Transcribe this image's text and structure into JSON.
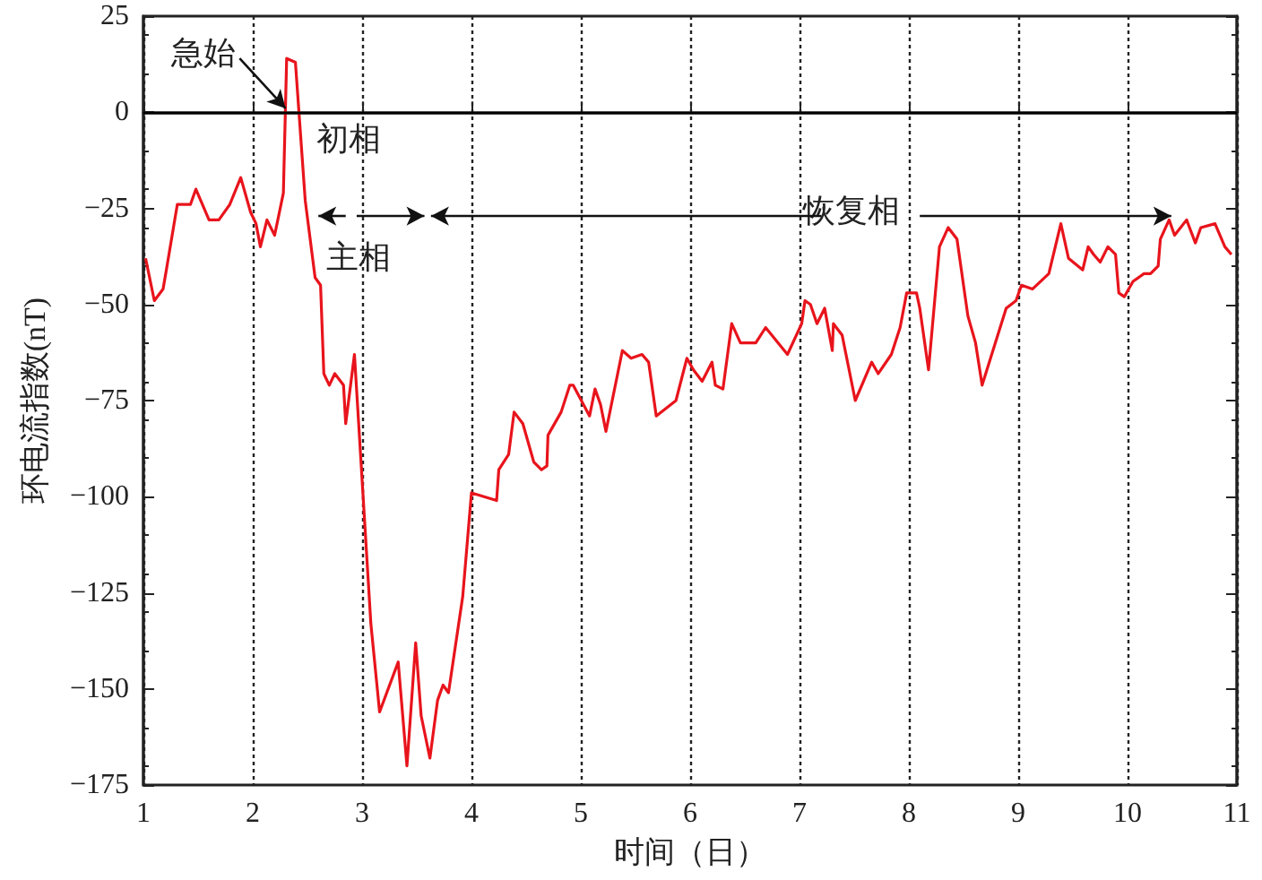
{
  "chart_data": {
    "type": "line",
    "xlabel": "时间（日）",
    "ylabel": "环电流指数(nT)",
    "marker": "none",
    "grid": "x",
    "xlim": [
      1,
      11
    ],
    "xticks": [
      1,
      2,
      3,
      4,
      5,
      6,
      7,
      8,
      9,
      10,
      11
    ],
    "ylim": [
      -175,
      25
    ],
    "yticks": [
      -175,
      -150,
      -125,
      -100,
      -75,
      -50,
      -25,
      0,
      25
    ],
    "x": [
      1.02,
      1.1,
      1.18,
      1.21,
      1.31,
      1.43,
      1.48,
      1.6,
      1.69,
      1.79,
      1.89,
      1.98,
      2.03,
      2.07,
      2.13,
      2.2,
      2.28,
      2.31,
      2.39,
      2.48,
      2.57,
      2.62,
      2.65,
      2.7,
      2.75,
      2.83,
      2.85,
      2.93,
      3.08,
      3.16,
      3.33,
      3.41,
      3.49,
      3.54,
      3.62,
      3.69,
      3.74,
      3.79,
      3.92,
      4.0,
      4.23,
      4.25,
      4.34,
      4.39,
      4.47,
      4.57,
      4.64,
      4.69,
      4.7,
      4.82,
      4.9,
      4.93,
      5.08,
      5.13,
      5.18,
      5.23,
      5.38,
      5.46,
      5.56,
      5.62,
      5.69,
      5.87,
      5.97,
      6.03,
      6.11,
      6.2,
      6.23,
      6.3,
      6.38,
      6.46,
      6.6,
      6.69,
      6.89,
      7.02,
      7.05,
      7.1,
      7.16,
      7.23,
      7.3,
      7.31,
      7.39,
      7.51,
      7.66,
      7.72,
      7.84,
      7.92,
      7.98,
      8.07,
      8.1,
      8.18,
      8.28,
      8.36,
      8.44,
      8.54,
      8.61,
      8.67,
      8.89,
      8.98,
      9.03,
      9.13,
      9.28,
      9.39,
      9.46,
      9.59,
      9.64,
      9.69,
      9.75,
      9.82,
      9.89,
      9.92,
      9.97,
      10.05,
      10.15,
      10.21,
      10.28,
      10.3,
      10.38,
      10.43,
      10.54,
      10.62,
      10.67,
      10.8,
      10.89,
      10.95
    ],
    "series": [
      {
        "color": "#e8141c",
        "values": [
          -38,
          -49,
          -46,
          -41,
          -24,
          -24,
          -20,
          -28,
          -28,
          -24,
          -17,
          -26,
          -29,
          -35,
          -28,
          -32,
          -21,
          14,
          13,
          -23,
          -43,
          -45,
          -68,
          -71,
          -68,
          -71,
          -81,
          -63,
          -133,
          -156,
          -143,
          -170,
          -138,
          -157,
          -168,
          -153,
          -149,
          -151,
          -126,
          -99,
          -101,
          -93,
          -89,
          -78,
          -81,
          -91,
          -93,
          -92,
          -84,
          -78,
          -71,
          -71,
          -79,
          -72,
          -76,
          -83,
          -62,
          -64,
          -63,
          -65,
          -79,
          -75,
          -64,
          -67,
          -70,
          -65,
          -71,
          -72,
          -55,
          -60,
          -60,
          -56,
          -63,
          -55,
          -49,
          -50,
          -55,
          -51,
          -62,
          -55,
          -58,
          -75,
          -65,
          -68,
          -63,
          -56,
          -47,
          -47,
          -51,
          -67,
          -35,
          -30,
          -33,
          -53,
          -60,
          -71,
          -51,
          -49,
          -45,
          -46,
          -42,
          -29,
          -38,
          -41,
          -35,
          -37,
          -39,
          -35,
          -37,
          -47,
          -48,
          -44,
          -42,
          -42,
          -40,
          -33,
          -28,
          -32,
          -28,
          -34,
          -30,
          -29,
          -35,
          -37
        ]
      }
    ],
    "ref_lines": [
      {
        "axis": "y",
        "value": 0,
        "color": "#000000",
        "line_style": "solid"
      }
    ],
    "annotations": [
      {
        "text": "急始",
        "x": 2.3,
        "y": 0
      },
      {
        "text": "初相",
        "x": 2.45,
        "y": 0
      },
      "主相",
      {
        "text": "恢复相",
        "x": 10.38,
        "y": -28.5
      }
    ]
  }
}
